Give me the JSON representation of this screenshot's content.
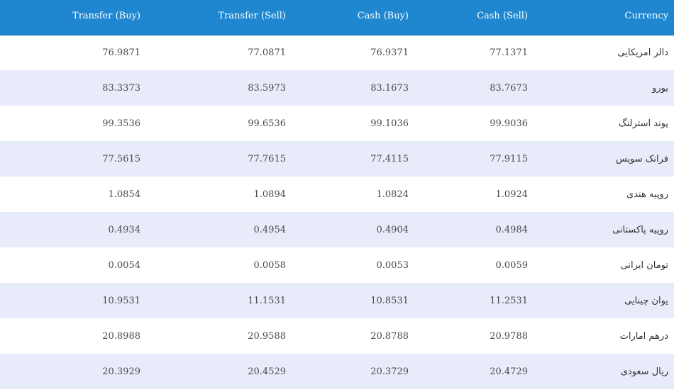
{
  "table": {
    "headers": [
      "Transfer (Buy)",
      "Transfer (Sell)",
      "Cash (Buy)",
      "Cash (Sell)",
      "Currency"
    ],
    "rows": [
      [
        "76.9871",
        "77.0871",
        "76.9371",
        "77.1371",
        "دالر امریکایی"
      ],
      [
        "83.3373",
        "83.5973",
        "83.1673",
        "83.7673",
        "یورو"
      ],
      [
        "99.3536",
        "99.6536",
        "99.1036",
        "99.9036",
        "پوند استرلنگ"
      ],
      [
        "77.5615",
        "77.7615",
        "77.4115",
        "77.9115",
        "فرانک سویس"
      ],
      [
        "1.0854",
        "1.0894",
        "1.0824",
        "1.0924",
        "روپیه هندی"
      ],
      [
        "0.4934",
        "0.4954",
        "0.4904",
        "0.4984",
        "روپیه پاکستانی"
      ],
      [
        "0.0054",
        "0.0058",
        "0.0053",
        "0.0059",
        "تومان ایرانی"
      ],
      [
        "10.9531",
        "11.1531",
        "10.8531",
        "11.2531",
        "یوان چینایی"
      ],
      [
        "20.8988",
        "20.9588",
        "20.8788",
        "20.9788",
        "درهم امارات"
      ],
      [
        "20.3929",
        "20.4529",
        "20.3729",
        "20.4729",
        "ریال سعودی"
      ]
    ]
  },
  "colors": {
    "header_bg": "#1e87cf",
    "row_alt_bg": "#e8ecfa"
  }
}
